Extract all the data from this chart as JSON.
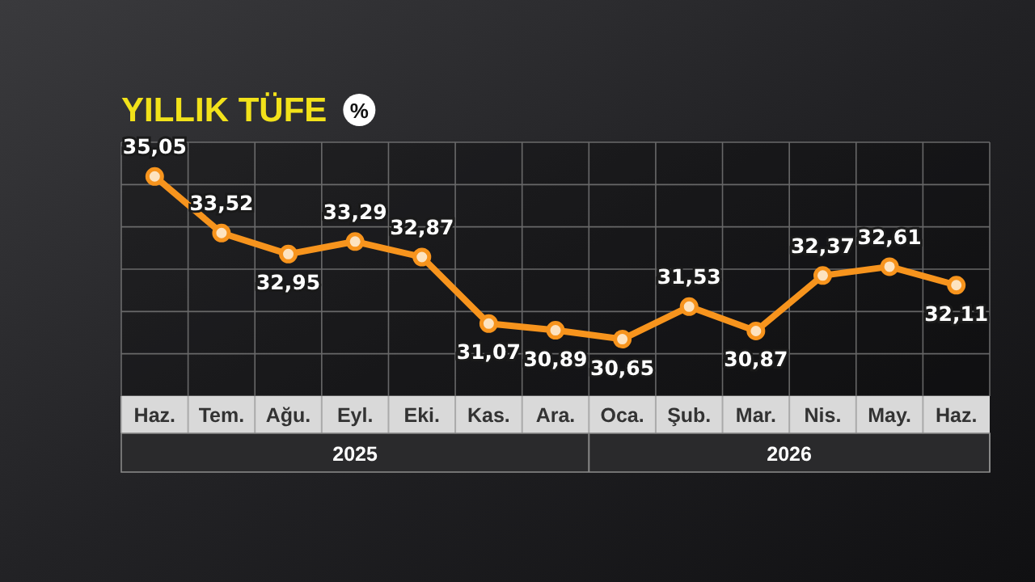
{
  "chart_data": {
    "type": "line",
    "title": "YILLIK TÜFE",
    "subtitle": "%",
    "categories": [
      "Haz.",
      "Tem.",
      "Ağu.",
      "Eyl.",
      "Eki.",
      "Kas.",
      "Ara.",
      "Oca.",
      "Şub.",
      "Mar.",
      "Nis.",
      "May.",
      "Haz."
    ],
    "series": [
      {
        "color": "#f7941d",
        "values": [
          35.05,
          33.52,
          32.95,
          33.29,
          32.87,
          31.07,
          30.89,
          30.65,
          31.53,
          30.87,
          32.37,
          32.61,
          32.11
        ],
        "value_labels": [
          "35,05",
          "33,52",
          "32,95",
          "33,29",
          "32,87",
          "31,07",
          "30,89",
          "30,65",
          "31,53",
          "30,87",
          "32,37",
          "32,61",
          "32,11"
        ]
      }
    ],
    "annotations": [
      "2025",
      "2026"
    ],
    "grid": true,
    "marker": "circle",
    "line_style": "solid"
  }
}
